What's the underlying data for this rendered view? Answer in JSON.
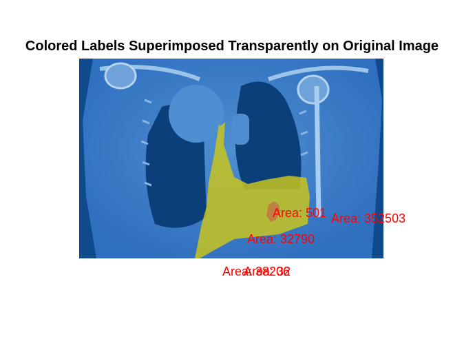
{
  "title": "Colored Labels Superimposed Transparently on Original Image",
  "image": {
    "subject": "ct-coronal-chest-slice",
    "base_tint": "#2f6fbf",
    "dark_tint": "#0b3f7a",
    "overlay_colors": {
      "label_1": "#c8c41f",
      "label_2": "#c07a45"
    }
  },
  "area_labels": [
    {
      "text": "Area: 501",
      "color": "#ff0000"
    },
    {
      "text": "Area: 352503",
      "color": "#ff0000"
    },
    {
      "text": "Area: 32790",
      "color": "#ff0000"
    },
    {
      "text": "Area: 38206",
      "color": "#ff0000"
    },
    {
      "text": "Area: 32",
      "color": "#ff0000"
    }
  ]
}
